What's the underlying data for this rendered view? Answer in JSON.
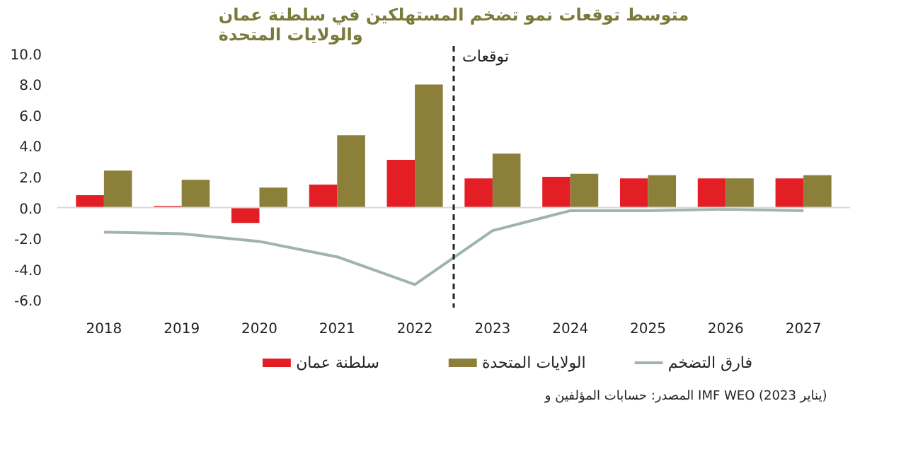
{
  "chart_data": {
    "type": "bar",
    "title": "متوسط توقعات نمو تضخم المستهلكين في سلطنة عمان\nوالولايات المتحدة",
    "x": [
      2018,
      2019,
      2020,
      2021,
      2022,
      2023,
      2024,
      2025,
      2026,
      2027
    ],
    "xlim": [
      2017.4,
      2027.6
    ],
    "xticks": [
      2018,
      2019,
      2020,
      2021,
      2022,
      2023,
      2024,
      2025,
      2026,
      2027
    ],
    "ylim": [
      -6.5,
      10.5
    ],
    "yticks": [
      {
        "value": -6,
        "label": "-6.0"
      },
      {
        "value": -4,
        "label": "-4.0"
      },
      {
        "value": -2,
        "label": "-2.0"
      },
      {
        "value": 0,
        "label": "0.0"
      },
      {
        "value": 2,
        "label": "2.0"
      },
      {
        "value": 4,
        "label": "4.0"
      },
      {
        "value": 6,
        "label": "6.0"
      },
      {
        "value": 8,
        "label": "8.0"
      },
      {
        "value": 10,
        "label": "10.0"
      }
    ],
    "series": [
      {
        "name": "سلطنة عمان",
        "color": "#e31e24",
        "values": [
          0.8,
          0.1,
          -1.0,
          1.5,
          3.1,
          1.9,
          2.0,
          1.9,
          1.9,
          1.9
        ]
      },
      {
        "name": "الولايات المتحدة",
        "color": "#8b7f3a",
        "values": [
          2.4,
          1.8,
          1.3,
          4.7,
          8.0,
          3.5,
          2.2,
          2.1,
          1.9,
          2.1
        ]
      },
      {
        "name": "فارق التضخم",
        "type": "line",
        "color": "#9fb3b0",
        "values": [
          -1.6,
          -1.7,
          -2.2,
          -3.2,
          -5.0,
          -1.5,
          -0.2,
          -0.2,
          -0.1,
          -0.2
        ]
      }
    ],
    "ref_lines": [
      {
        "axis": "y",
        "value": 0,
        "label": null,
        "color": "#d9d9d9",
        "line_style": "solid"
      },
      {
        "axis": "x",
        "value": 2022.5,
        "label": "توقعات",
        "color": "#222222",
        "line_style": "dashed"
      }
    ],
    "legend": "bottom",
    "grid": false,
    "annotations": [
      "المصدر: حسابات المؤلفين و IMF WEO (يناير 2023)"
    ]
  }
}
